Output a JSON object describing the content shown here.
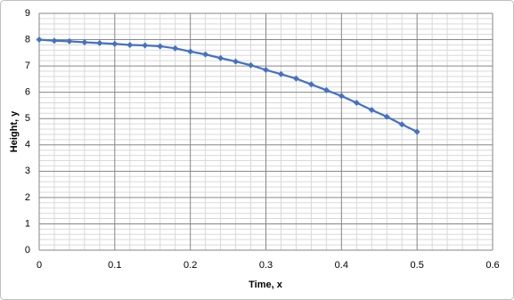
{
  "chart_data": {
    "type": "line",
    "x_label": "Time, x",
    "y_label": "Height, y",
    "x": [
      0,
      0.02,
      0.04,
      0.06,
      0.08,
      0.1,
      0.12,
      0.14,
      0.16,
      0.18,
      0.2,
      0.22,
      0.24,
      0.26,
      0.28,
      0.3,
      0.32,
      0.34,
      0.36,
      0.38,
      0.4,
      0.42,
      0.44,
      0.46,
      0.48,
      0.5
    ],
    "series": [
      {
        "color": "#4472c4",
        "values": [
          8.0,
          7.96,
          7.94,
          7.9,
          7.87,
          7.84,
          7.8,
          7.78,
          7.75,
          7.67,
          7.55,
          7.44,
          7.3,
          7.17,
          7.03,
          6.85,
          6.69,
          6.52,
          6.3,
          6.08,
          5.86,
          5.6,
          5.33,
          5.07,
          4.78,
          4.5
        ]
      }
    ],
    "xlim": [
      0,
      0.6
    ],
    "xticks": [
      0,
      0.1,
      0.2,
      0.3,
      0.4,
      0.5,
      0.6
    ],
    "ylim": [
      0,
      9
    ],
    "yticks": [
      0,
      1,
      2,
      3,
      4,
      5,
      6,
      7,
      8,
      9
    ],
    "grid": true,
    "minor_grid": true
  }
}
